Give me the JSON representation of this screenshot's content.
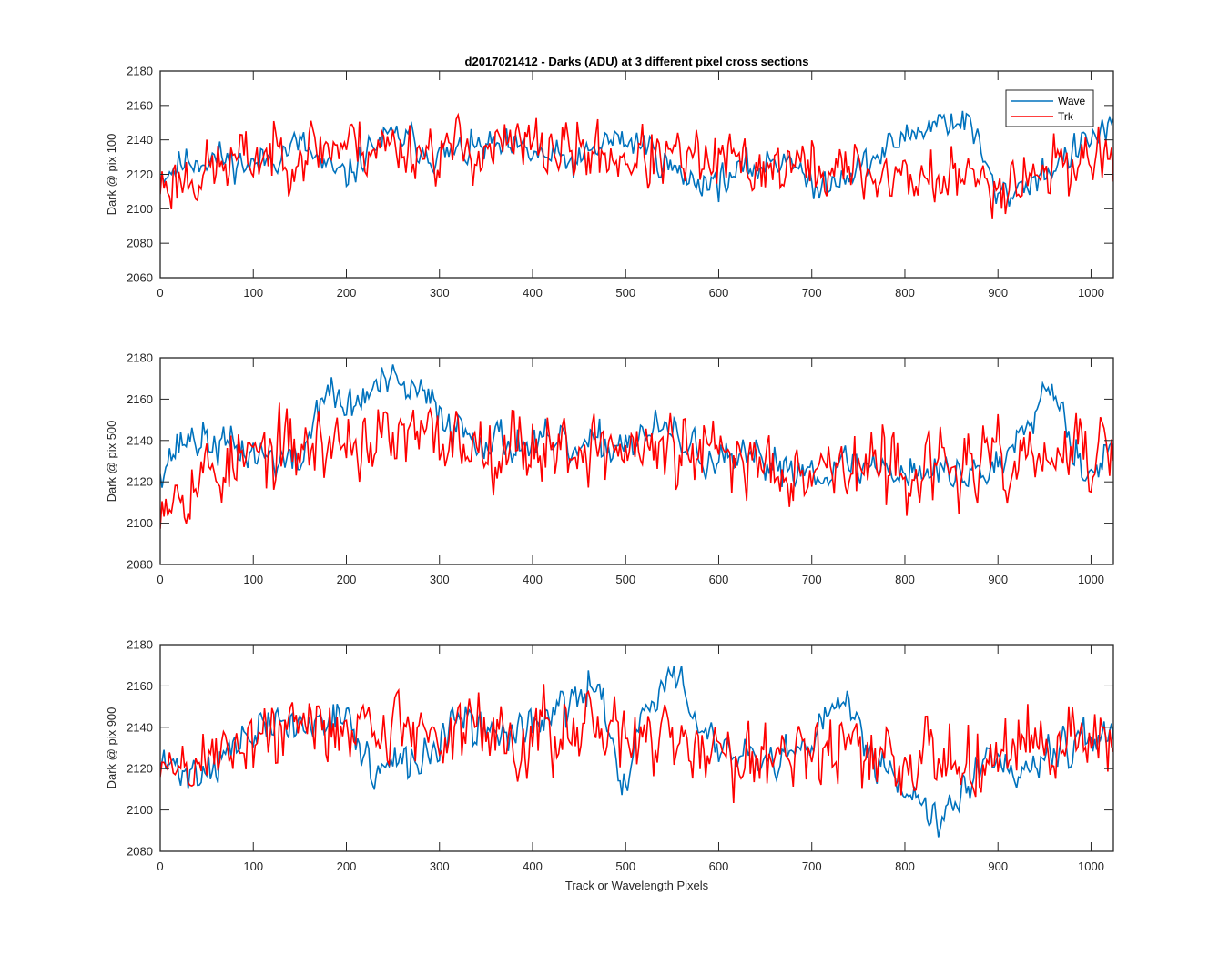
{
  "chart_data": [
    {
      "type": "line",
      "title": "d2017021412 - Darks (ADU) at 3 different pixel cross sections",
      "xlabel": "",
      "ylabel": "Dark @ pix 100",
      "xlim": [
        0,
        1024
      ],
      "ylim": [
        2060,
        2180
      ],
      "xticks": [
        0,
        100,
        200,
        300,
        400,
        500,
        600,
        700,
        800,
        900,
        1000
      ],
      "yticks": [
        2060,
        2080,
        2100,
        2120,
        2140,
        2160,
        2180
      ],
      "legend": {
        "placement": "top-right",
        "entries": [
          "Wave",
          "Trk"
        ]
      },
      "series": [
        {
          "name": "Wave",
          "color": "#0072BD",
          "anchors": [
            [
              0,
              2120
            ],
            [
              30,
              2128
            ],
            [
              60,
              2130
            ],
            [
              100,
              2125
            ],
            [
              150,
              2138
            ],
            [
              180,
              2122
            ],
            [
              200,
              2118
            ],
            [
              230,
              2138
            ],
            [
              260,
              2142
            ],
            [
              300,
              2130
            ],
            [
              350,
              2136
            ],
            [
              400,
              2132
            ],
            [
              450,
              2126
            ],
            [
              480,
              2140
            ],
            [
              520,
              2138
            ],
            [
              560,
              2118
            ],
            [
              600,
              2116
            ],
            [
              650,
              2126
            ],
            [
              680,
              2132
            ],
            [
              700,
              2108
            ],
            [
              720,
              2118
            ],
            [
              760,
              2126
            ],
            [
              800,
              2142
            ],
            [
              840,
              2152
            ],
            [
              870,
              2150
            ],
            [
              900,
              2106
            ],
            [
              940,
              2118
            ],
            [
              980,
              2132
            ],
            [
              1024,
              2150
            ]
          ],
          "noise": 7,
          "seed": 11
        },
        {
          "name": "Trk",
          "color": "#FF0000",
          "anchors": [
            [
              0,
              2114
            ],
            [
              50,
              2122
            ],
            [
              100,
              2130
            ],
            [
              200,
              2138
            ],
            [
              300,
              2134
            ],
            [
              400,
              2136
            ],
            [
              500,
              2130
            ],
            [
              600,
              2126
            ],
            [
              700,
              2124
            ],
            [
              800,
              2118
            ],
            [
              900,
              2116
            ],
            [
              1000,
              2130
            ],
            [
              1024,
              2134
            ]
          ],
          "noise": 13,
          "seed": 23
        }
      ]
    },
    {
      "type": "line",
      "title": "",
      "xlabel": "",
      "ylabel": "Dark @ pix 500",
      "xlim": [
        0,
        1024
      ],
      "ylim": [
        2080,
        2180
      ],
      "xticks": [
        0,
        100,
        200,
        300,
        400,
        500,
        600,
        700,
        800,
        900,
        1000
      ],
      "yticks": [
        2080,
        2100,
        2120,
        2140,
        2160,
        2180
      ],
      "series": [
        {
          "name": "Wave",
          "color": "#0072BD",
          "anchors": [
            [
              0,
              2128
            ],
            [
              30,
              2142
            ],
            [
              60,
              2138
            ],
            [
              100,
              2134
            ],
            [
              150,
              2128
            ],
            [
              175,
              2165
            ],
            [
              200,
              2155
            ],
            [
              240,
              2168
            ],
            [
              280,
              2162
            ],
            [
              320,
              2146
            ],
            [
              360,
              2140
            ],
            [
              400,
              2138
            ],
            [
              450,
              2135
            ],
            [
              500,
              2140
            ],
            [
              540,
              2145
            ],
            [
              600,
              2128
            ],
            [
              650,
              2130
            ],
            [
              700,
              2126
            ],
            [
              750,
              2128
            ],
            [
              800,
              2126
            ],
            [
              850,
              2124
            ],
            [
              900,
              2126
            ],
            [
              940,
              2160
            ],
            [
              960,
              2168
            ],
            [
              990,
              2126
            ],
            [
              1024,
              2134
            ]
          ],
          "noise": 7,
          "seed": 37
        },
        {
          "name": "Trk",
          "color": "#FF0000",
          "anchors": [
            [
              0,
              2115
            ],
            [
              50,
              2124
            ],
            [
              100,
              2132
            ],
            [
              200,
              2140
            ],
            [
              300,
              2140
            ],
            [
              400,
              2138
            ],
            [
              500,
              2136
            ],
            [
              600,
              2132
            ],
            [
              700,
              2128
            ],
            [
              800,
              2126
            ],
            [
              900,
              2128
            ],
            [
              1000,
              2134
            ],
            [
              1024,
              2136
            ]
          ],
          "noise": 13,
          "seed": 53
        }
      ]
    },
    {
      "type": "line",
      "title": "",
      "xlabel": "Track or Wavelength Pixels",
      "ylabel": "Dark @ pix 900",
      "xlim": [
        0,
        1024
      ],
      "ylim": [
        2080,
        2180
      ],
      "xticks": [
        0,
        100,
        200,
        300,
        400,
        500,
        600,
        700,
        800,
        900,
        1000
      ],
      "yticks": [
        2080,
        2100,
        2120,
        2140,
        2160,
        2180
      ],
      "series": [
        {
          "name": "Wave",
          "color": "#0072BD",
          "anchors": [
            [
              0,
              2122
            ],
            [
              40,
              2118
            ],
            [
              80,
              2130
            ],
            [
              120,
              2142
            ],
            [
              160,
              2140
            ],
            [
              190,
              2150
            ],
            [
              230,
              2118
            ],
            [
              280,
              2124
            ],
            [
              320,
              2142
            ],
            [
              360,
              2136
            ],
            [
              400,
              2142
            ],
            [
              440,
              2150
            ],
            [
              470,
              2160
            ],
            [
              500,
              2112
            ],
            [
              520,
              2148
            ],
            [
              550,
              2166
            ],
            [
              580,
              2140
            ],
            [
              620,
              2124
            ],
            [
              660,
              2120
            ],
            [
              700,
              2132
            ],
            [
              740,
              2156
            ],
            [
              760,
              2130
            ],
            [
              800,
              2112
            ],
            [
              830,
              2098
            ],
            [
              860,
              2108
            ],
            [
              890,
              2130
            ],
            [
              920,
              2118
            ],
            [
              960,
              2132
            ],
            [
              1024,
              2136
            ]
          ],
          "noise": 7,
          "seed": 71
        },
        {
          "name": "Trk",
          "color": "#FF0000",
          "anchors": [
            [
              0,
              2118
            ],
            [
              50,
              2124
            ],
            [
              100,
              2136
            ],
            [
              200,
              2142
            ],
            [
              300,
              2138
            ],
            [
              400,
              2136
            ],
            [
              500,
              2136
            ],
            [
              600,
              2128
            ],
            [
              700,
              2130
            ],
            [
              800,
              2122
            ],
            [
              900,
              2130
            ],
            [
              1000,
              2134
            ],
            [
              1024,
              2138
            ]
          ],
          "noise": 13,
          "seed": 89
        }
      ]
    }
  ]
}
